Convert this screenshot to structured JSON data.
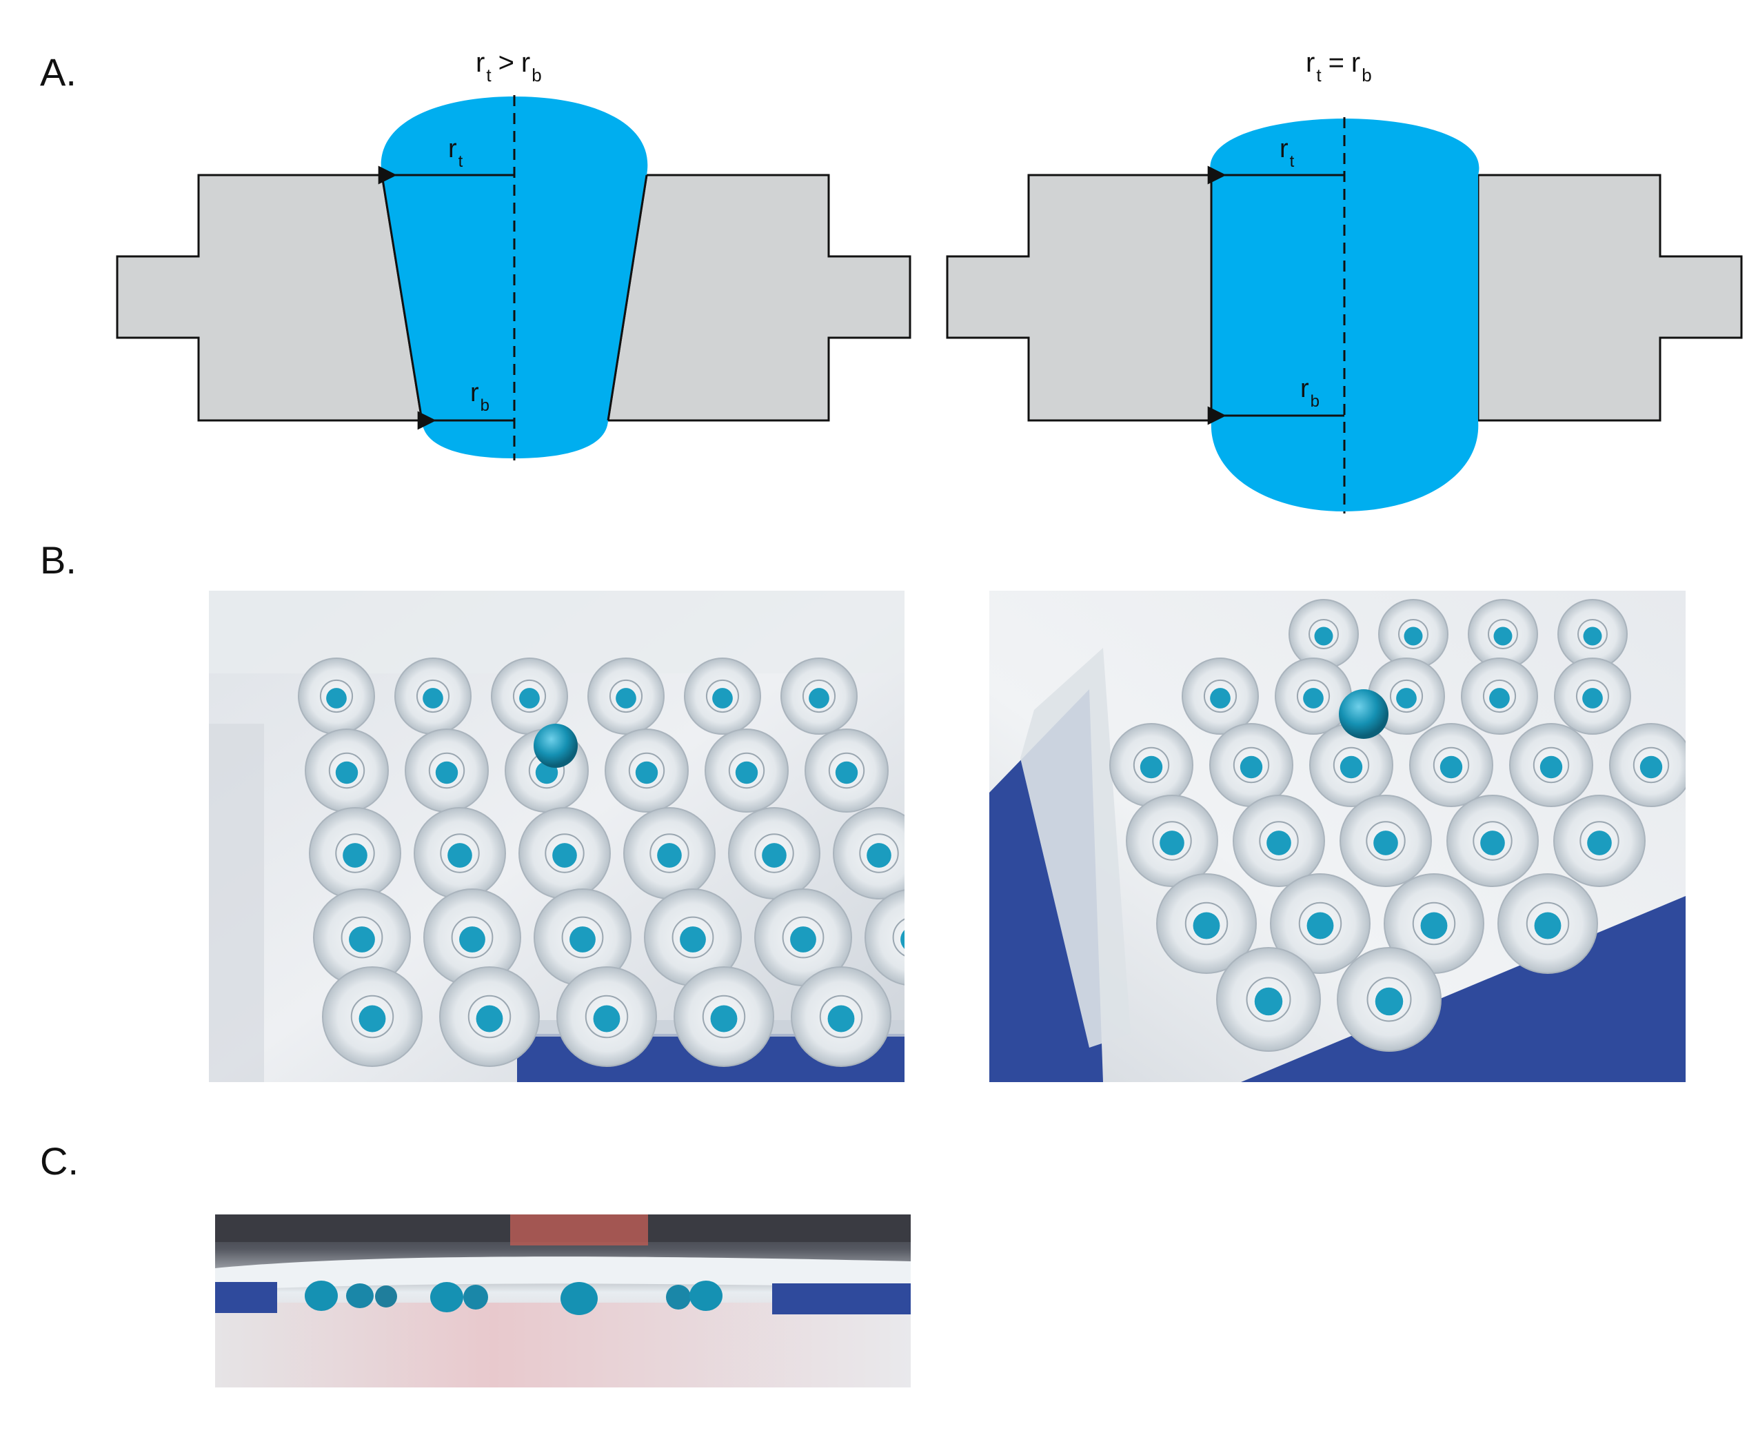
{
  "panels": {
    "a": "A.",
    "b": "B.",
    "c": "C."
  },
  "diagram_left": {
    "title_r1": "r",
    "title_s1": "t",
    "title_op": ">",
    "title_r2": "r",
    "title_s2": "b",
    "top_label_r": "r",
    "top_label_sub": "t",
    "bottom_label_r": "r",
    "bottom_label_sub": "b"
  },
  "diagram_right": {
    "title_r1": "r",
    "title_s1": "t",
    "title_op": "=",
    "title_r2": "r",
    "title_s2": "b",
    "top_label_r": "r",
    "top_label_sub": "t",
    "bottom_label_r": "r",
    "bottom_label_sub": "b"
  },
  "colors": {
    "fluid": "#00aeef",
    "plate": "#d1d3d4",
    "outline": "#111111",
    "drop": "#1591b3",
    "tray": "#2b3f8c"
  }
}
